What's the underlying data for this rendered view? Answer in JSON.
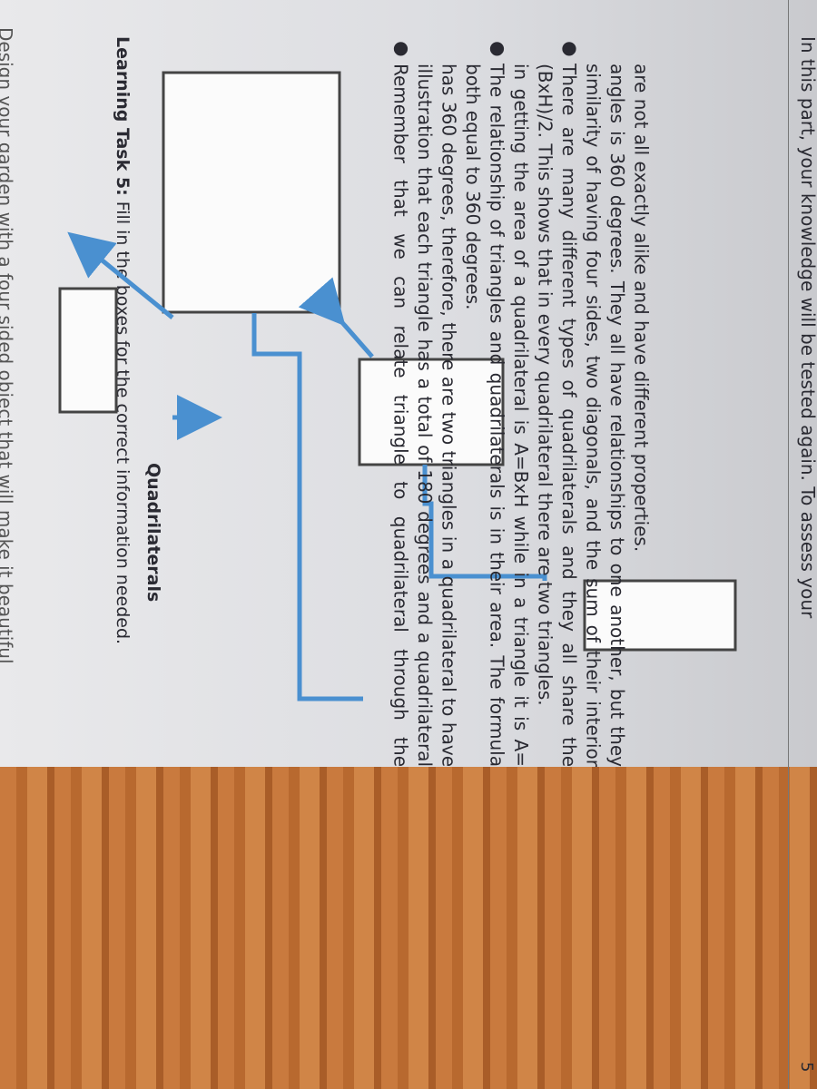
{
  "header": {
    "cut_text": "Design your garden with a four sided object that will make it beautiful"
  },
  "task": {
    "label": "Learning Task 5:",
    "text": "Fill in the boxes for the correct information needed."
  },
  "diagram": {
    "heading": "Quadrilaterals"
  },
  "notes": [
    "Remember that we can relate triangle to quadrilateral through the illustration that each triangle has a total of 180 degrees and a quadrilateral has 360 degrees, therefore, there are two triangles in a quadrilateral to have both equal to 360 degrees.",
    "The relationship of triangles and quadrilaterals is in their area. The formula in getting the area of a quadrilateral is A=BxH while in a triangle it is A=(BxH)/2. This shows that in every quadrilateral there are two triangles.",
    "There are many different types of quadrilaterals and they all share the similarity of having four sides, two diagonals, and the sum of their interior angles is 360 degrees. They all have relationships to one another, but they are not all exactly alike and have different properties."
  ],
  "footer": {
    "text": "In this part, your knowledge will be tested again. To assess your",
    "page_number": "5"
  }
}
